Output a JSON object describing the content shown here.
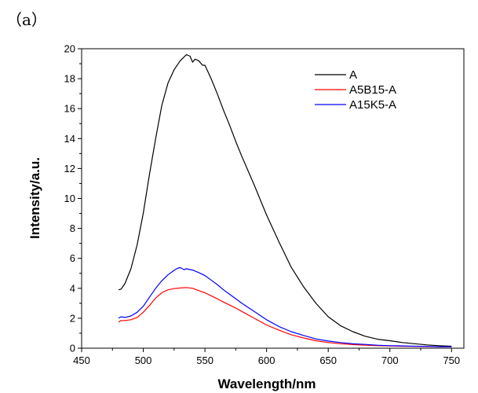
{
  "panel_label": "（a）",
  "chart_data": {
    "type": "line",
    "xlabel": "Wavelength/nm",
    "ylabel": "Intensity/a.u.",
    "xlim": [
      450,
      760
    ],
    "ylim": [
      0,
      20
    ],
    "xticks": [
      450,
      500,
      550,
      600,
      650,
      700,
      750
    ],
    "yticks": [
      0,
      2,
      4,
      6,
      8,
      10,
      12,
      14,
      16,
      18,
      20
    ],
    "grid": false,
    "legend_position": "top-right",
    "series": [
      {
        "name": "A",
        "color": "#000000",
        "x": [
          480,
          482,
          485,
          490,
          495,
          500,
          505,
          510,
          515,
          520,
          525,
          530,
          535,
          538,
          540,
          542,
          545,
          548,
          550,
          555,
          560,
          565,
          570,
          575,
          580,
          590,
          600,
          610,
          620,
          630,
          640,
          650,
          660,
          670,
          680,
          690,
          700,
          710,
          720,
          730,
          740,
          750
        ],
        "y": [
          3.9,
          3.95,
          4.3,
          5.3,
          6.9,
          9.0,
          11.6,
          14.0,
          16.2,
          17.7,
          18.6,
          19.2,
          19.6,
          19.5,
          19.1,
          19.3,
          19.2,
          18.9,
          18.9,
          18.0,
          17.0,
          15.9,
          14.9,
          13.8,
          12.8,
          10.9,
          8.9,
          7.1,
          5.4,
          4.1,
          3.0,
          2.1,
          1.5,
          1.1,
          0.8,
          0.6,
          0.5,
          0.38,
          0.3,
          0.22,
          0.17,
          0.13
        ]
      },
      {
        "name": "A5B15-A",
        "color": "#ff0000",
        "x": [
          480,
          482,
          485,
          490,
          495,
          500,
          505,
          510,
          515,
          520,
          525,
          530,
          535,
          540,
          545,
          550,
          555,
          560,
          565,
          570,
          575,
          580,
          590,
          600,
          610,
          620,
          630,
          640,
          650,
          660,
          670,
          680,
          690,
          700,
          710,
          720,
          730,
          740,
          750
        ],
        "y": [
          1.75,
          1.85,
          1.85,
          1.9,
          2.05,
          2.4,
          2.85,
          3.35,
          3.7,
          3.9,
          3.98,
          4.02,
          4.05,
          4.0,
          3.85,
          3.7,
          3.5,
          3.3,
          3.08,
          2.88,
          2.68,
          2.45,
          2.0,
          1.55,
          1.2,
          0.9,
          0.68,
          0.5,
          0.38,
          0.3,
          0.24,
          0.2,
          0.17,
          0.15,
          0.13,
          0.12,
          0.11,
          0.1,
          0.1
        ]
      },
      {
        "name": "A15K5-A",
        "color": "#0000ff",
        "x": [
          480,
          482,
          485,
          490,
          495,
          500,
          505,
          510,
          515,
          520,
          525,
          528,
          530,
          533,
          535,
          540,
          545,
          550,
          555,
          560,
          565,
          570,
          575,
          580,
          590,
          600,
          610,
          620,
          630,
          640,
          650,
          660,
          670,
          680,
          690,
          700,
          710,
          720,
          730,
          740,
          750
        ],
        "y": [
          2.0,
          2.1,
          2.05,
          2.15,
          2.4,
          2.8,
          3.4,
          4.0,
          4.5,
          4.9,
          5.2,
          5.35,
          5.38,
          5.25,
          5.3,
          5.22,
          5.05,
          4.85,
          4.55,
          4.25,
          3.9,
          3.6,
          3.3,
          3.0,
          2.45,
          1.9,
          1.45,
          1.1,
          0.85,
          0.62,
          0.48,
          0.38,
          0.3,
          0.25,
          0.2,
          0.17,
          0.15,
          0.13,
          0.12,
          0.1,
          0.1
        ]
      }
    ]
  }
}
